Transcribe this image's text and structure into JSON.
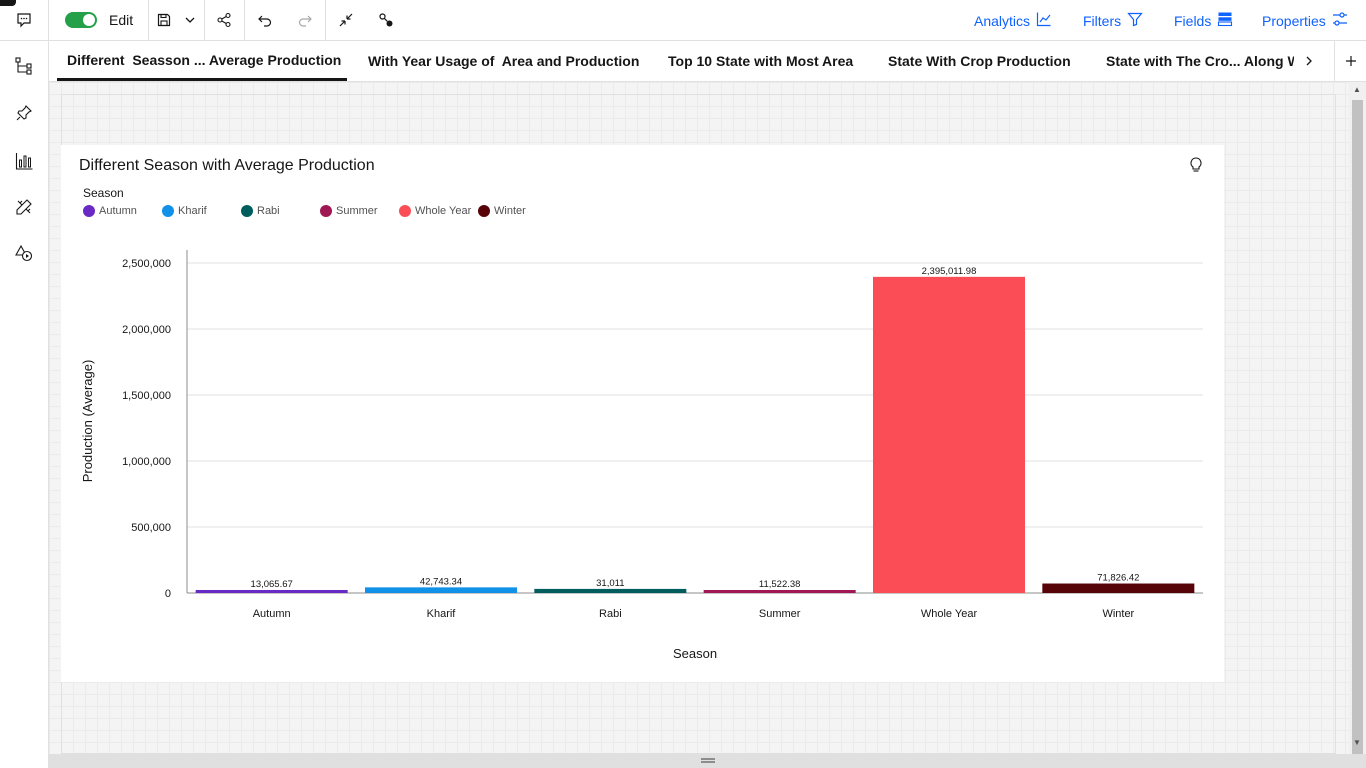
{
  "toolbar": {
    "edit_label": "Edit",
    "edit_on": true,
    "analytics_label": "Analytics",
    "filters_label": "Filters",
    "fields_label": "Fields",
    "properties_label": "Properties"
  },
  "tabs": [
    {
      "label": "Different  Seasson ... Average Production",
      "active": true
    },
    {
      "label": "With Year Usage of  Area and Production",
      "active": false
    },
    {
      "label": "Top 10 State with Most Area",
      "active": false
    },
    {
      "label": "State With Crop Production",
      "active": false
    },
    {
      "label": "State with The Cro... Along W",
      "active": false
    }
  ],
  "colors": {
    "accent": "#0f62fe",
    "toggle_on": "#24a148",
    "Autumn": "#6929c4",
    "Kharif": "#1192e8",
    "Rabi": "#005d5d",
    "Summer": "#9f1853",
    "Whole Year": "#fa4d56",
    "Winter": "#570408"
  },
  "chart_data": {
    "type": "bar",
    "title": "Different Season with Average Production",
    "legend_title": "Season",
    "legend_position": "top-left",
    "categories": [
      "Autumn",
      "Kharif",
      "Rabi",
      "Summer",
      "Whole Year",
      "Winter"
    ],
    "values": [
      13065.67,
      42743.34,
      31011,
      11522.38,
      2395011.98,
      71826.42
    ],
    "value_labels": [
      "13,065.67",
      "42,743.34",
      "31,011",
      "11,522.38",
      "2,395,011.98",
      "71,826.42"
    ],
    "xlabel": "Season",
    "ylabel": "Production (Average)",
    "ylim": [
      0,
      2500000
    ],
    "yticks": [
      0,
      500000,
      1000000,
      1500000,
      2000000,
      2500000
    ],
    "ytick_labels": [
      "0",
      "500,000",
      "1,000,000",
      "1,500,000",
      "2,000,000",
      "2,500,000"
    ],
    "grid": true
  }
}
